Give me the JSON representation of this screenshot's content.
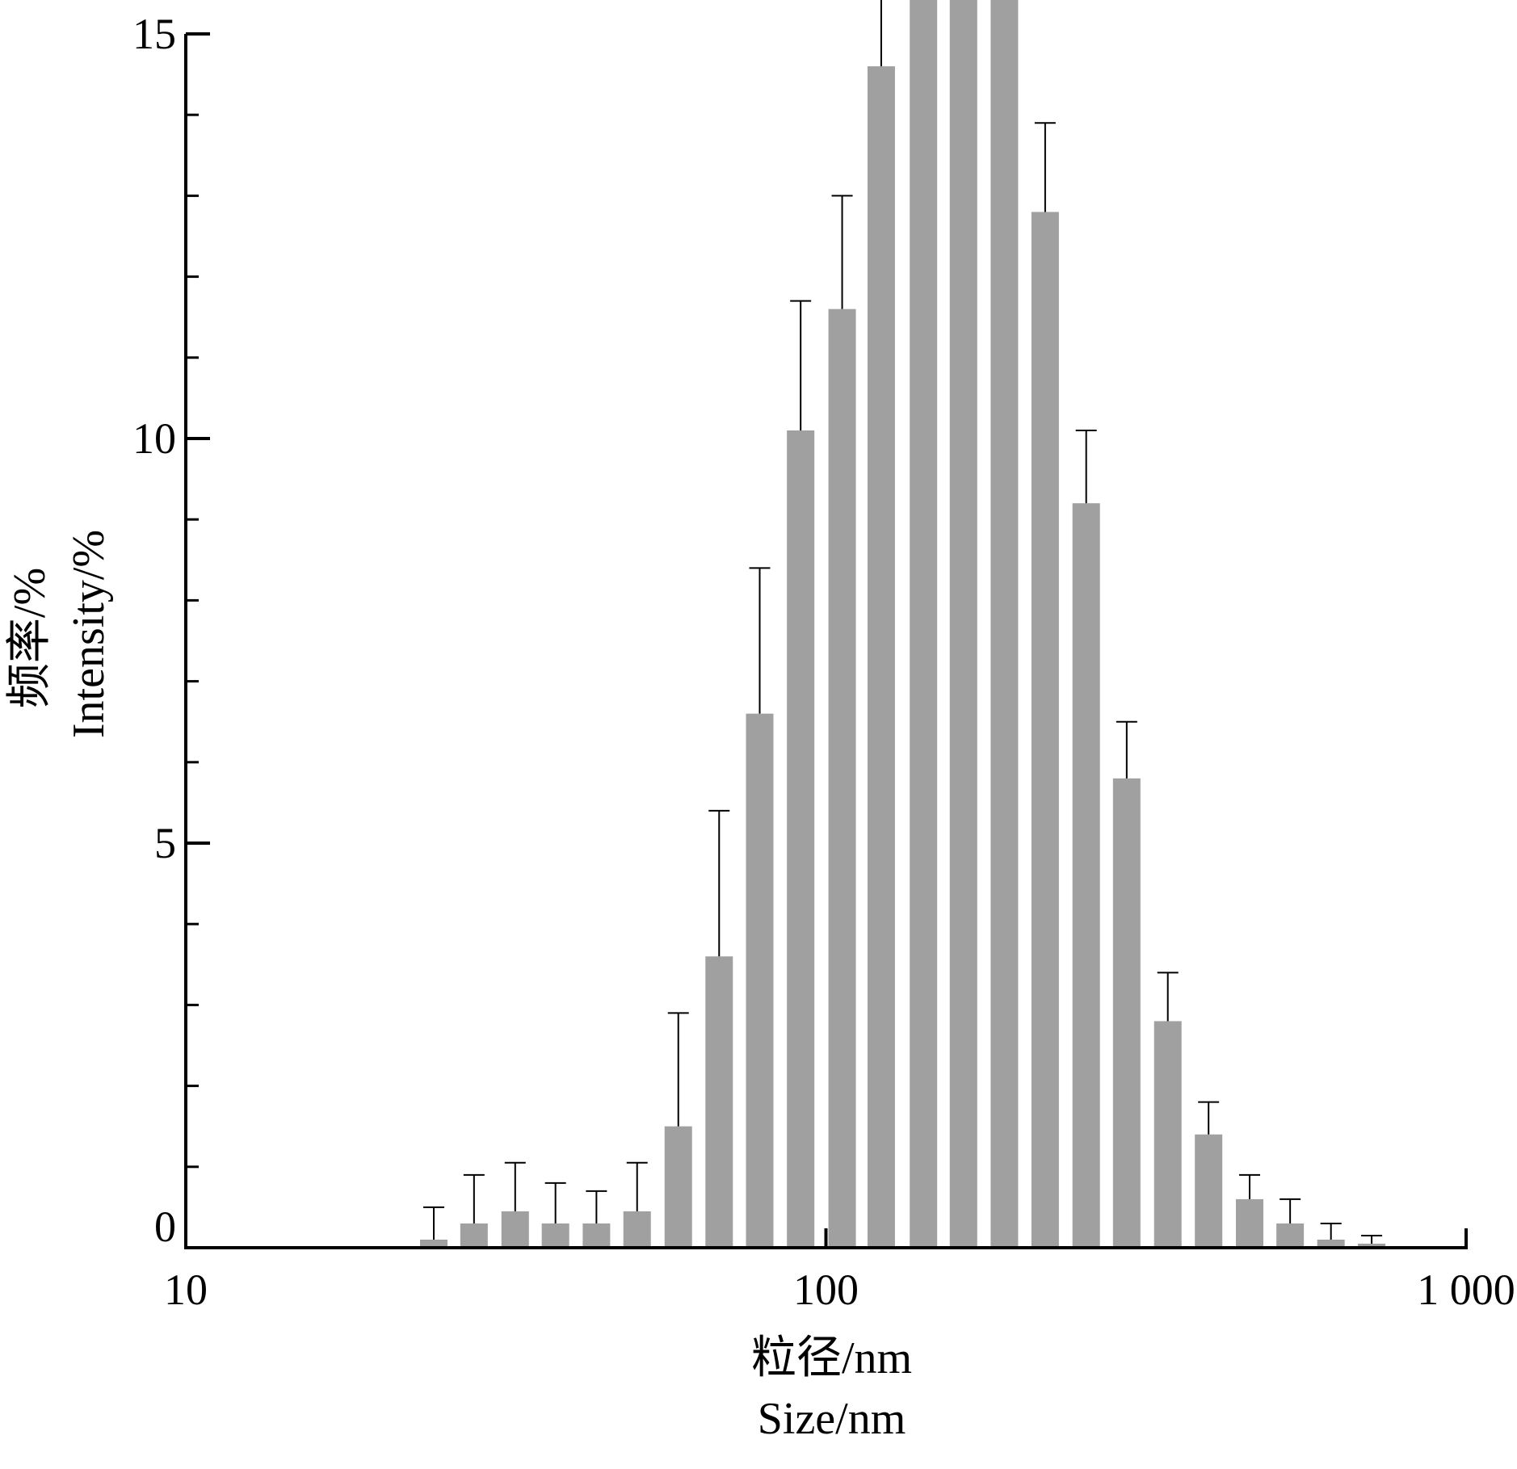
{
  "chart_data": {
    "type": "bar",
    "x_scale": "log",
    "xlim": [
      10,
      1000
    ],
    "ylim": [
      0,
      15
    ],
    "x_ticks": [
      {
        "value": 10,
        "label": "10"
      },
      {
        "value": 100,
        "label": "100"
      },
      {
        "value": 1000,
        "label": "1 000"
      }
    ],
    "y_ticks": [
      {
        "value": 0,
        "label": "0"
      },
      {
        "value": 5,
        "label": "5"
      },
      {
        "value": 10,
        "label": "10"
      },
      {
        "value": 15,
        "label": "15"
      }
    ],
    "y_minor_step": 1,
    "xlabel": [
      "粒径/nm",
      "Size/nm"
    ],
    "ylabel": [
      "频率/%",
      "Intensity/%"
    ],
    "grid": false,
    "bar_color": "#a0a0a0",
    "errorbar_color": "#000000",
    "x": [
      24.4,
      28.2,
      32.7,
      37.8,
      43.8,
      50.7,
      58.8,
      68.1,
      78.8,
      91.3,
      106,
      122,
      142,
      164,
      190,
      220,
      255,
      295,
      342,
      396,
      459,
      531,
      615,
      712
    ],
    "values": [
      0.1,
      0.3,
      0.45,
      0.3,
      0.3,
      0.45,
      1.5,
      3.6,
      6.6,
      10.1,
      11.6,
      14.6,
      16.3,
      16.6,
      15.6,
      12.8,
      9.2,
      5.8,
      2.8,
      1.4,
      0.6,
      0.3,
      0.1,
      0.05
    ],
    "errors": [
      0.4,
      0.6,
      0.6,
      0.5,
      0.4,
      0.6,
      1.4,
      1.8,
      1.8,
      1.6,
      1.4,
      1.3,
      1.4,
      1.5,
      1.4,
      1.1,
      0.9,
      0.7,
      0.6,
      0.4,
      0.3,
      0.3,
      0.2,
      0.1
    ]
  }
}
